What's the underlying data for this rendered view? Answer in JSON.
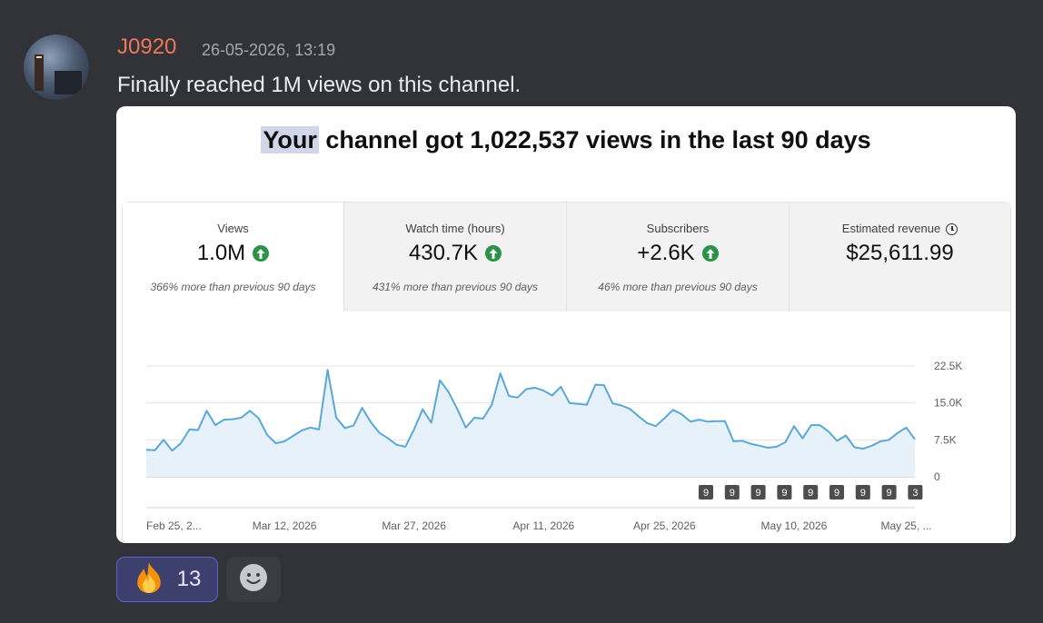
{
  "message": {
    "author": "J0920",
    "timestamp": "26-05-2026, 13:19",
    "text": "Finally reached 1M views on this channel.",
    "author_color": "#f0785a"
  },
  "embed": {
    "headline_highlight": "Your",
    "headline_rest": " channel got 1,022,537 views in the last 90 days",
    "metrics": [
      {
        "label": "Views",
        "value": "1.0M",
        "up": true,
        "sub": "366% more than previous 90 days"
      },
      {
        "label": "Watch time (hours)",
        "value": "430.7K",
        "up": true,
        "sub": "431% more than previous 90 days"
      },
      {
        "label": "Subscribers",
        "value": "+2.6K",
        "up": true,
        "sub": "46% more than previous 90 days"
      },
      {
        "label": "Estimated revenue",
        "value": "$25,611.99",
        "up": false,
        "sub": "",
        "icon": "clock-icon"
      }
    ]
  },
  "chart_data": {
    "type": "area",
    "color": "#5aa8d6",
    "fill": "#e6f1fa",
    "y_ticks": [
      "22.5K",
      "15.0K",
      "7.5K",
      "0"
    ],
    "ylim": [
      0,
      22500
    ],
    "x_tick_labels": [
      "Feb 25, 2...",
      "Mar 12, 2026",
      "Mar 27, 2026",
      "Apr 11, 2026",
      "Apr 25, 2026",
      "May 10, 2026",
      "May 25, ..."
    ],
    "x_ticks": [
      1,
      16,
      31,
      46,
      60,
      75,
      88
    ],
    "values": [
      5500,
      5400,
      7500,
      5300,
      6800,
      9600,
      9500,
      13400,
      10500,
      11600,
      11700,
      12000,
      13400,
      11900,
      8500,
      6800,
      7200,
      8300,
      9400,
      10000,
      9600,
      21700,
      12000,
      9900,
      10400,
      14000,
      11100,
      8900,
      7800,
      6500,
      6100,
      9600,
      13700,
      11000,
      19600,
      17200,
      13800,
      10000,
      12000,
      11800,
      14600,
      21000,
      16400,
      16100,
      17800,
      18100,
      17500,
      16500,
      18300,
      15000,
      14800,
      14600,
      18700,
      18600,
      14900,
      14500,
      13800,
      12300,
      10900,
      10300,
      11900,
      13600,
      12700,
      11200,
      11600,
      11200,
      11300,
      11300,
      7200,
      7300,
      6700,
      6300,
      5900,
      6100,
      7000,
      10300,
      7800,
      10500,
      10500,
      9200,
      7300,
      8400,
      6000,
      5700,
      6300,
      7200,
      7500,
      8900,
      10000,
      7600
    ],
    "annotation_labels": [
      "9",
      "9",
      "9",
      "9",
      "9",
      "9",
      "9",
      "9",
      "3"
    ]
  },
  "reactions": [
    {
      "emoji": "🔥",
      "count": "13",
      "icon": "fire-icon"
    }
  ],
  "add_reaction_icon": "smiley-icon"
}
